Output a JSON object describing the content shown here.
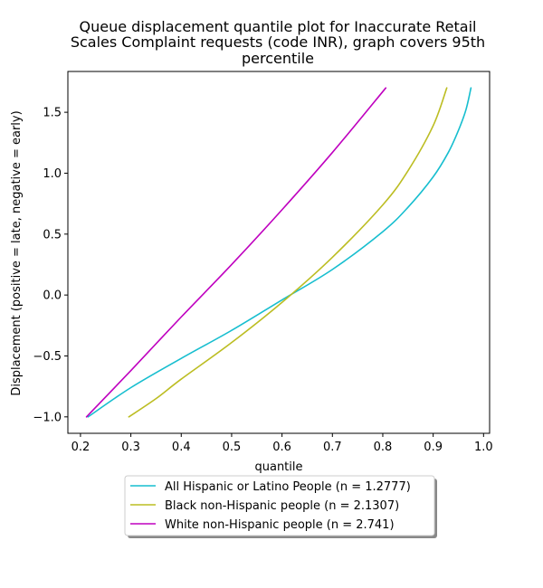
{
  "chart_data": {
    "type": "line",
    "title": "Queue displacement quantile plot for Inaccurate Retail Scales Complaint  requests (code INR), graph covers 95th percentile",
    "title_lines": [
      "Queue displacement quantile plot for Inaccurate Retail",
      "Scales Complaint  requests (code INR), graph covers 95th",
      "percentile"
    ],
    "xlabel": "quantile",
    "ylabel": "Displacement (positive = late, negative = early)",
    "xlim": [
      0.175,
      1.012
    ],
    "ylim": [
      -1.135,
      1.835
    ],
    "xticks": [
      0.2,
      0.3,
      0.4,
      0.5,
      0.6,
      0.7,
      0.8,
      0.9,
      1.0
    ],
    "xtick_labels": [
      "0.2",
      "0.3",
      "0.4",
      "0.5",
      "0.6",
      "0.7",
      "0.8",
      "0.9",
      "1.0"
    ],
    "yticks": [
      -1.0,
      -0.5,
      0.0,
      0.5,
      1.0,
      1.5
    ],
    "ytick_labels": [
      "−1.0",
      "−0.5",
      "0.0",
      "0.5",
      "1.0",
      "1.5"
    ],
    "grid": false,
    "legend_position": "below",
    "series": [
      {
        "name": "All Hispanic or Latino People (n = 1.2777)",
        "color": "#17becf",
        "x": [
          0.215,
          0.3,
          0.4,
          0.5,
          0.6,
          0.7,
          0.8,
          0.85,
          0.9,
          0.93,
          0.95,
          0.965,
          0.975
        ],
        "y": [
          -1.0,
          -0.76,
          -0.52,
          -0.29,
          -0.04,
          0.21,
          0.52,
          0.72,
          0.97,
          1.17,
          1.35,
          1.52,
          1.7
        ]
      },
      {
        "name": "Black non-Hispanic people (n = 2.1307)",
        "color": "#bcbd22",
        "x": [
          0.296,
          0.35,
          0.4,
          0.5,
          0.6,
          0.7,
          0.8,
          0.85,
          0.9,
          0.927
        ],
        "y": [
          -1.0,
          -0.85,
          -0.69,
          -0.39,
          -0.06,
          0.31,
          0.74,
          1.02,
          1.39,
          1.7
        ]
      },
      {
        "name": "White non-Hispanic people (n = 2.741)",
        "color": "#bf00bf",
        "x": [
          0.212,
          0.3,
          0.4,
          0.5,
          0.6,
          0.7,
          0.806
        ],
        "y": [
          -1.0,
          -0.62,
          -0.18,
          0.25,
          0.7,
          1.17,
          1.7
        ]
      }
    ]
  }
}
